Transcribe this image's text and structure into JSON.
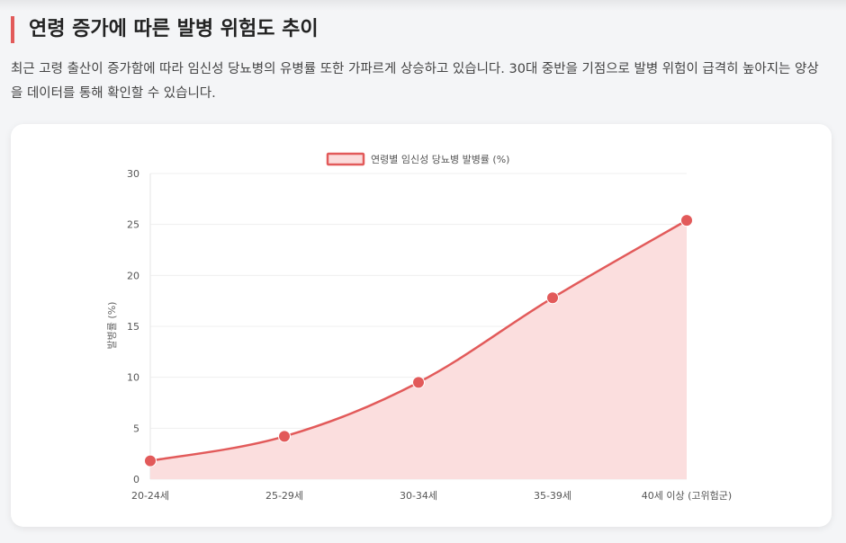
{
  "section": {
    "title": "연령 증가에 따른 발병 위험도 추이",
    "description": "최근 고령 출산이 증가함에 따라 임신성 당뇨병의 유병률 또한 가파르게 상승하고 있습니다. 30대 중반을 기점으로 발병 위험이 급격히 높아지는 양상을 데이터를 통해 확인할 수 있습니다."
  },
  "colors": {
    "accent": "#e25a5a",
    "line": "#e25a5a",
    "fill": "#fbdcdc",
    "grid": "#efefef"
  },
  "chart_data": {
    "type": "area",
    "title": "",
    "categories": [
      "20-24세",
      "25-29세",
      "30-34세",
      "35-39세",
      "40세 이상 (고위험군)"
    ],
    "series": [
      {
        "name": "연령별 임신성 당뇨병 발병률 (%)",
        "values": [
          1.8,
          4.2,
          9.5,
          17.8,
          25.4
        ]
      }
    ],
    "xlabel": "",
    "ylabel": "발병률 (%)",
    "ylim": [
      0,
      30
    ],
    "yticks": [
      "0",
      "5",
      "10",
      "15",
      "20",
      "25",
      "30"
    ],
    "grid": true,
    "legend_position": "top"
  }
}
